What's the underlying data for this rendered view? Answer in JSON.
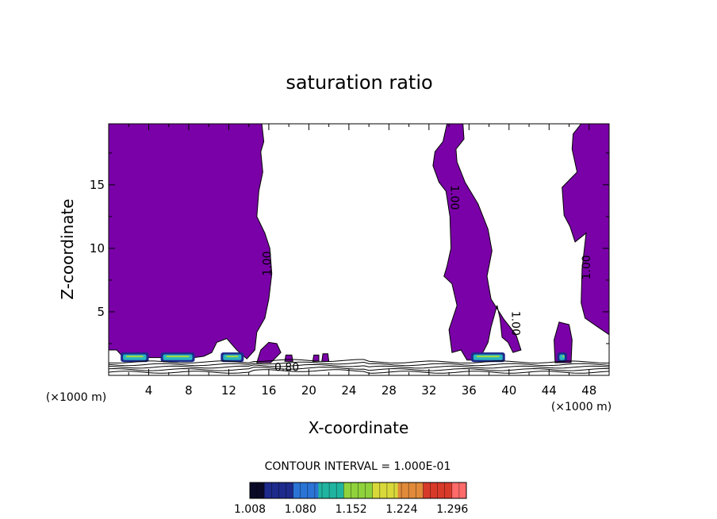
{
  "chart_data": {
    "type": "heatmap",
    "title": "saturation ratio",
    "xlabel": "X-coordinate",
    "ylabel": "Z-coordinate",
    "x_unit": "(×1000 m)",
    "y_unit": "(×1000 m)",
    "xlim": [
      0,
      50
    ],
    "ylim": [
      0,
      19.8
    ],
    "x_ticks": [
      4,
      8,
      12,
      16,
      20,
      24,
      28,
      32,
      36,
      40,
      44,
      48
    ],
    "y_ticks": [
      5,
      10,
      15
    ],
    "contour_interval_text": "CONTOUR INTERVAL = 1.000E-01",
    "contour_labels": [
      "1.00",
      "1.00",
      "1.00",
      "1.00",
      "0.80"
    ],
    "colorbar": {
      "min": 1.008,
      "max": 1.316,
      "tick_labels": [
        "1.008",
        "1.080",
        "1.152",
        "1.224",
        "1.296"
      ],
      "colors": [
        "#0a0a28",
        "#1e2a8c",
        "#2b74d6",
        "#20b4a0",
        "#8fd23c",
        "#d8d83a",
        "#e08a3a",
        "#d83a2a",
        "#ff6a6a"
      ]
    },
    "fill_color": "#7a00a8",
    "regions": [
      {
        "name": "saturated-west",
        "x_range": [
          0,
          16
        ],
        "z_range": [
          0.8,
          19.8
        ]
      },
      {
        "name": "saturated-central",
        "x_range": [
          32.4,
          41.2
        ],
        "z_range": [
          1.2,
          19.8
        ]
      },
      {
        "name": "saturated-east",
        "x_range": [
          45.3,
          50
        ],
        "z_range": [
          2,
          19.8
        ]
      }
    ]
  }
}
